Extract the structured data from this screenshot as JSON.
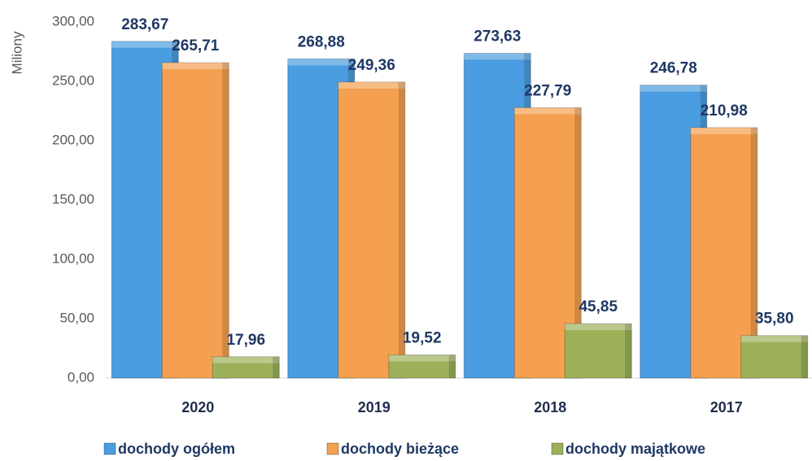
{
  "chart_data": {
    "type": "bar",
    "y_label": "Miliony",
    "categories": [
      "2020",
      "2019",
      "2018",
      "2017"
    ],
    "series": [
      {
        "name": "dochody ogółem",
        "color": "#4a9de0",
        "values": [
          283.67,
          268.88,
          273.63,
          246.78
        ],
        "value_labels": [
          "283,67",
          "268,88",
          "273,63",
          "246,78"
        ]
      },
      {
        "name": "dochody bieżące",
        "color": "#f4a050",
        "values": [
          265.71,
          249.36,
          227.79,
          210.98
        ],
        "value_labels": [
          "265,71",
          "249,36",
          "227,79",
          "210,98"
        ]
      },
      {
        "name": "dochody majątkowe",
        "color": "#9cb05a",
        "values": [
          17.96,
          19.52,
          45.85,
          35.8
        ],
        "value_labels": [
          "17,96",
          "19,52",
          "45,85",
          "35,80"
        ]
      }
    ],
    "ylim": [
      0,
      300
    ],
    "yticks": [
      {
        "value": 0,
        "label": "0,00"
      },
      {
        "value": 50,
        "label": "50,00"
      },
      {
        "value": 100,
        "label": "100,00"
      },
      {
        "value": 150,
        "label": "150,00"
      },
      {
        "value": 200,
        "label": "200,00"
      },
      {
        "value": 250,
        "label": "250,00"
      },
      {
        "value": 300,
        "label": "300,00"
      }
    ],
    "legend": "bottom"
  }
}
